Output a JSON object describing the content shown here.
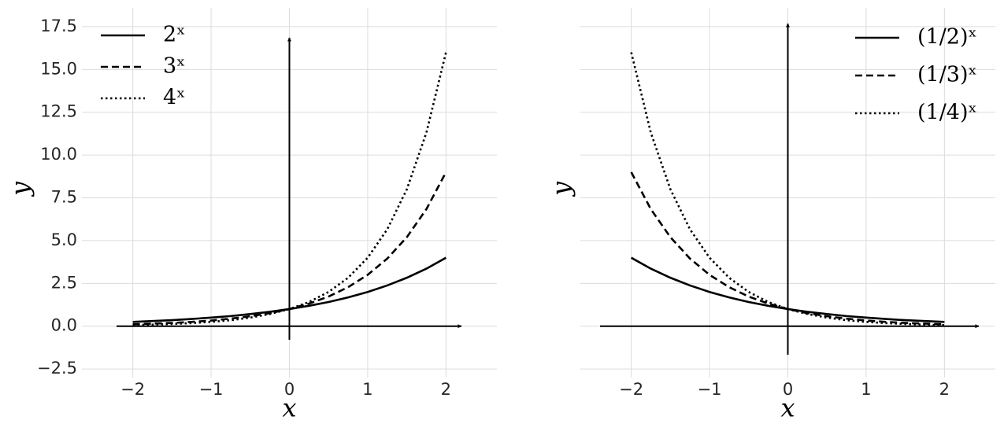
{
  "chart_data": [
    {
      "type": "line",
      "xlabel": "x",
      "ylabel": "y",
      "legend": "upper left",
      "grid": true,
      "xlim": [
        -2.65,
        2.65
      ],
      "ylim": [
        -3,
        18.6
      ],
      "xticks": [
        {
          "value": -2,
          "label": "−2"
        },
        {
          "value": -1,
          "label": "−1"
        },
        0,
        1,
        2
      ],
      "yticks": [
        {
          "value": -2.5,
          "label": "−2.5"
        },
        {
          "value": 0,
          "label": "0.0"
        },
        2.5,
        {
          "value": 5,
          "label": "5.0"
        },
        7.5,
        {
          "value": 10,
          "label": "10.0"
        },
        12.5,
        {
          "value": 15,
          "label": "15.0"
        },
        17.5
      ],
      "x": [
        -2,
        -1.75,
        -1.5,
        -1.25,
        -1,
        -0.75,
        -0.5,
        -0.25,
        0,
        0.25,
        0.5,
        0.75,
        1,
        1.25,
        1.5,
        1.75,
        2
      ],
      "series": [
        {
          "name": "2ˣ",
          "color": "#000000",
          "linestyle": "solid",
          "values": [
            0.25,
            0.3,
            0.35,
            0.42,
            0.5,
            0.59,
            0.71,
            0.84,
            1,
            1.19,
            1.41,
            1.68,
            2,
            2.38,
            2.83,
            3.36,
            4
          ]
        },
        {
          "name": "3ˣ",
          "color": "#000000",
          "linestyle": "dashed",
          "values": [
            0.11,
            0.15,
            0.19,
            0.25,
            0.33,
            0.44,
            0.58,
            0.76,
            1,
            1.32,
            1.73,
            2.28,
            3,
            3.95,
            5.2,
            6.84,
            9
          ]
        },
        {
          "name": "4ˣ",
          "color": "#000000",
          "linestyle": "dotted",
          "values": [
            0.06,
            0.09,
            0.13,
            0.18,
            0.25,
            0.35,
            0.5,
            0.71,
            1,
            1.41,
            2,
            2.83,
            4,
            5.66,
            8,
            11.31,
            16
          ]
        }
      ]
    },
    {
      "type": "line",
      "xlabel": "x",
      "ylabel": "y",
      "legend": "upper right",
      "grid": true,
      "xlim": [
        -2.65,
        2.65
      ],
      "ylim": [
        -3,
        18.6
      ],
      "xticks": [
        {
          "value": -2,
          "label": "−2"
        },
        {
          "value": -1,
          "label": "−1"
        },
        0,
        1,
        2
      ],
      "yticks": [
        -2.5,
        0,
        2.5,
        5,
        7.5,
        10,
        12.5,
        15,
        17.5
      ],
      "x": [
        -2,
        -1.75,
        -1.5,
        -1.25,
        -1,
        -0.75,
        -0.5,
        -0.25,
        0,
        0.25,
        0.5,
        0.75,
        1,
        1.25,
        1.5,
        1.75,
        2
      ],
      "series": [
        {
          "name": "(1/2)ˣ",
          "color": "#000000",
          "linestyle": "solid",
          "values": [
            4,
            3.36,
            2.83,
            2.38,
            2,
            1.68,
            1.41,
            1.19,
            1,
            0.84,
            0.71,
            0.59,
            0.5,
            0.42,
            0.35,
            0.3,
            0.25
          ]
        },
        {
          "name": "(1/3)ˣ",
          "color": "#000000",
          "linestyle": "dashed",
          "values": [
            9,
            6.84,
            5.2,
            3.95,
            3,
            2.28,
            1.73,
            1.32,
            1,
            0.76,
            0.58,
            0.44,
            0.33,
            0.25,
            0.19,
            0.15,
            0.11
          ]
        },
        {
          "name": "(1/4)ˣ",
          "color": "#000000",
          "linestyle": "dotted",
          "values": [
            16,
            11.31,
            8,
            5.66,
            4,
            2.83,
            2,
            1.41,
            1,
            0.71,
            0.5,
            0.35,
            0.25,
            0.18,
            0.13,
            0.09,
            0.06
          ]
        }
      ]
    }
  ]
}
